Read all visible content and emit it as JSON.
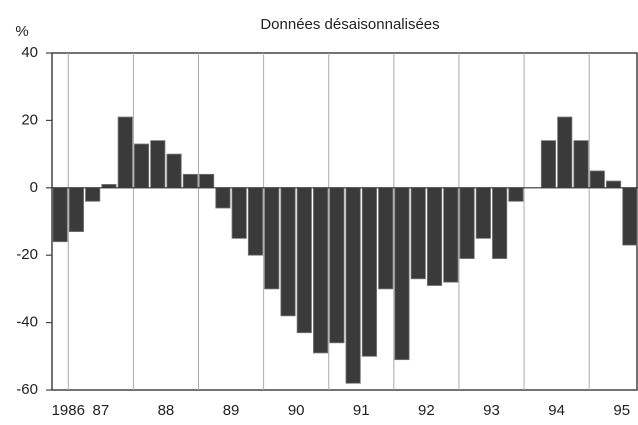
{
  "chart_data": {
    "type": "bar",
    "title": "Données désaisonnalisées",
    "y_label": "%",
    "categories": [
      "1986",
      null,
      "87",
      null,
      null,
      null,
      "88",
      null,
      null,
      null,
      "89",
      null,
      null,
      null,
      "90",
      null,
      null,
      null,
      "91",
      null,
      null,
      null,
      "92",
      null,
      null,
      null,
      "93",
      null,
      null,
      null,
      "94",
      null,
      null,
      null,
      "95",
      null
    ],
    "values": [
      -16,
      -13,
      -4,
      1,
      21,
      13,
      14,
      10,
      4,
      4,
      -6,
      -15,
      -20,
      -30,
      -38,
      -43,
      -49,
      -46,
      -58,
      -50,
      -30,
      -51,
      -27,
      -29,
      -28,
      -21,
      -15,
      -21,
      -4,
      0,
      14,
      21,
      14,
      5,
      2,
      -17
    ],
    "color": "#3a3a3a",
    "ylim": [
      -60,
      40
    ],
    "yticks": [
      40,
      20,
      0,
      -20,
      -40,
      -60
    ]
  }
}
